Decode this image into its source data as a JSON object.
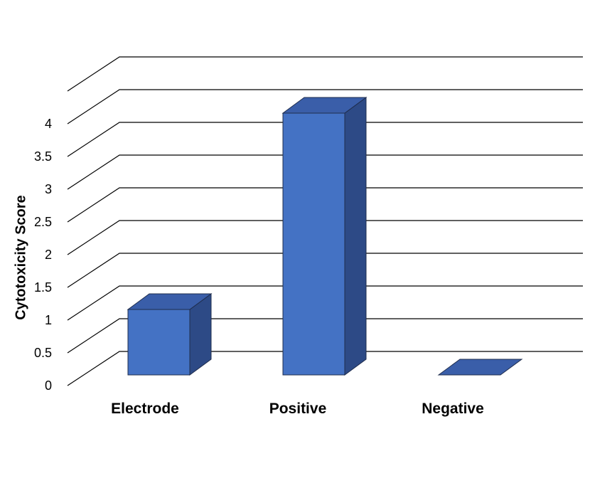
{
  "chart_data": {
    "type": "bar",
    "style": "3d",
    "categories": [
      "Electrode",
      "Positive",
      "Negative"
    ],
    "values": [
      1,
      4,
      0
    ],
    "ylabel": "Cytotoxicity Score",
    "xlabel": "",
    "ylim": [
      0,
      4.5
    ],
    "yticks": [
      "0",
      "0.5",
      "1",
      "1.5",
      "2",
      "2.5",
      "3",
      "3.5",
      "4"
    ],
    "grid": true,
    "legend": "none",
    "colors": {
      "bar_front": "#4472c4",
      "bar_top": "#3a5ea9",
      "bar_side": "#2d4a86",
      "bar_stroke": "#1f2d4d",
      "grid": "#000000"
    }
  }
}
